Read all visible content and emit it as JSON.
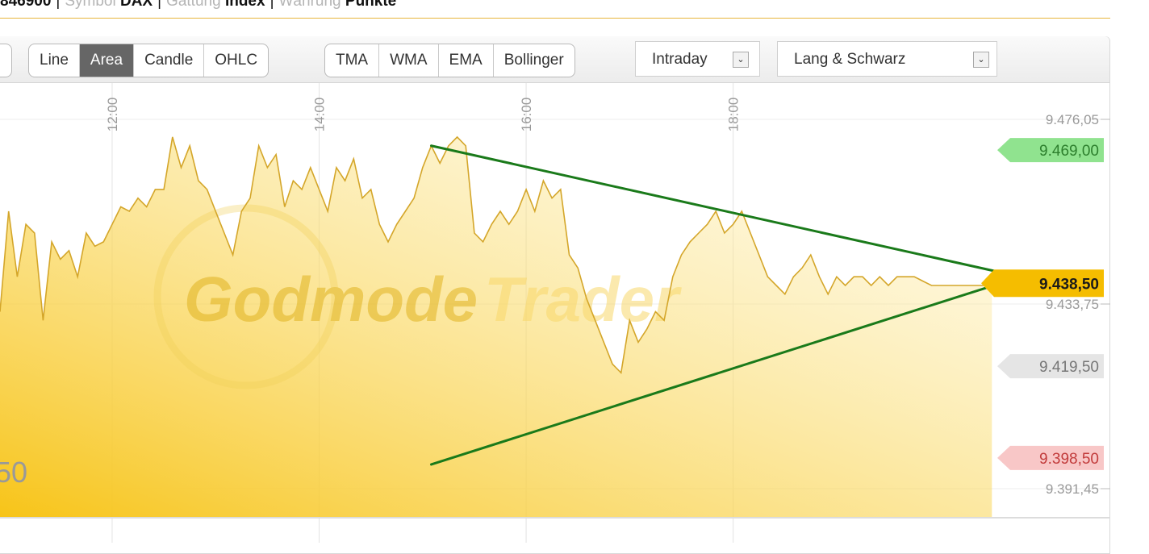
{
  "header": {
    "isin_value": "846900",
    "symbol_label": "Symbol",
    "symbol_value": "DAX",
    "gattung_label": "Gattung",
    "gattung_value": "Index",
    "waehrung_label": "Währung",
    "waehrung_value": "Punkte"
  },
  "toolbar": {
    "chart_types": [
      {
        "label": "Line",
        "active": false
      },
      {
        "label": "Area",
        "active": true
      },
      {
        "label": "Candle",
        "active": false
      },
      {
        "label": "OHLC",
        "active": false
      }
    ],
    "indicators": [
      "TMA",
      "WMA",
      "EMA",
      "Bollinger"
    ],
    "timeframe": "Intraday",
    "exchange": "Lang & Schwarz"
  },
  "colors": {
    "area_top": "#f7c418",
    "line": "#d4a62a",
    "trendline": "#1a7a1a",
    "tag_high": "#90e38f",
    "tag_current": "#f5bd00",
    "tag_prev": "#e5e5e5",
    "tag_low": "#f8c7c7",
    "watermark": "#e2b829"
  },
  "chart_data": {
    "type": "area",
    "x_ticks": [
      "12:00",
      "14:00",
      "16:00",
      "18:00"
    ],
    "y_ticks": [
      "9.476,05",
      "9.433,75",
      "9.391,45"
    ],
    "y_ticks_numeric": [
      9476.05,
      9433.75,
      9391.45
    ],
    "price_tags": [
      {
        "label": "9.469,00",
        "value": 9469.0,
        "kind": "high"
      },
      {
        "label": "9.438,50",
        "value": 9438.5,
        "kind": "current"
      },
      {
        "label": "9.419,50",
        "value": 9419.5,
        "kind": "previous"
      },
      {
        "label": "9.398,50",
        "value": 9398.5,
        "kind": "low"
      }
    ],
    "left_partial_label": "50",
    "watermark_text": [
      "Godmode",
      "Trader"
    ],
    "ylim": [
      9391.45,
      9476.05
    ],
    "xlim": [
      "10:55",
      "20:35"
    ],
    "series": [
      {
        "x": [
          "10:55",
          "11:00",
          "11:05",
          "11:10",
          "11:15",
          "11:20",
          "11:25",
          "11:30",
          "11:35",
          "11:40",
          "11:45",
          "11:50",
          "11:55",
          "12:00",
          "12:05",
          "12:10",
          "12:15",
          "12:20",
          "12:25",
          "12:30",
          "12:35",
          "12:40",
          "12:45",
          "12:50",
          "12:55",
          "13:00",
          "13:05",
          "13:10",
          "13:15",
          "13:20",
          "13:25",
          "13:30",
          "13:35",
          "13:40",
          "13:45",
          "13:50",
          "13:55",
          "14:00",
          "14:05",
          "14:10",
          "14:15",
          "14:20",
          "14:25",
          "14:30",
          "14:35",
          "14:40",
          "14:45",
          "14:50",
          "14:55",
          "15:00",
          "15:05",
          "15:10",
          "15:15",
          "15:20",
          "15:25",
          "15:30",
          "15:35",
          "15:40",
          "15:45",
          "15:50",
          "15:55",
          "16:00",
          "16:05",
          "16:10",
          "16:15",
          "16:20",
          "16:25",
          "16:30",
          "16:35",
          "16:40",
          "16:45",
          "16:50",
          "16:55",
          "17:00",
          "17:05",
          "17:10",
          "17:15",
          "17:20",
          "17:25",
          "17:30",
          "17:35",
          "17:40",
          "17:45",
          "17:50",
          "17:55",
          "18:00",
          "18:05",
          "18:10",
          "18:15",
          "18:20",
          "18:25",
          "18:30",
          "18:35",
          "18:40",
          "18:45",
          "18:50",
          "18:55",
          "19:00",
          "19:05",
          "19:10",
          "19:15",
          "19:20",
          "19:25",
          "19:30",
          "19:35",
          "19:40",
          "19:45",
          "19:50",
          "19:55",
          "20:00",
          "20:05",
          "20:10",
          "20:15",
          "20:20",
          "20:25",
          "20:30"
        ],
        "y": [
          9432,
          9455,
          9440,
          9452,
          9450,
          9430,
          9448,
          9444,
          9446,
          9440,
          9450,
          9447,
          9448,
          9452,
          9456,
          9455,
          9458,
          9456,
          9460,
          9460,
          9472,
          9465,
          9470,
          9462,
          9460,
          9455,
          9450,
          9445,
          9455,
          9458,
          9470,
          9465,
          9468,
          9456,
          9462,
          9460,
          9465,
          9460,
          9455,
          9465,
          9462,
          9467,
          9458,
          9460,
          9452,
          9448,
          9452,
          9455,
          9458,
          9465,
          9470,
          9466,
          9470,
          9472,
          9470,
          9450,
          9448,
          9452,
          9455,
          9452,
          9455,
          9460,
          9455,
          9462,
          9458,
          9460,
          9445,
          9442,
          9435,
          9430,
          9425,
          9420,
          9418,
          9430,
          9425,
          9428,
          9432,
          9430,
          9440,
          9445,
          9448,
          9450,
          9452,
          9455,
          9450,
          9452,
          9455,
          9450,
          9445,
          9440,
          9438,
          9436,
          9440,
          9442,
          9445,
          9440,
          9436,
          9440,
          9438,
          9440,
          9440,
          9438,
          9440,
          9438,
          9440,
          9440,
          9440,
          9439,
          9438,
          9438,
          9438,
          9438,
          9438,
          9438,
          9438,
          9438.5
        ],
        "name": ""
      }
    ],
    "trendlines": [
      {
        "from": [
          "15:05",
          9470.0
        ],
        "to": [
          "20:35",
          9441.0
        ]
      },
      {
        "from": [
          "15:05",
          9397.0
        ],
        "to": [
          "20:35",
          9438.5
        ]
      }
    ],
    "grid": true
  }
}
